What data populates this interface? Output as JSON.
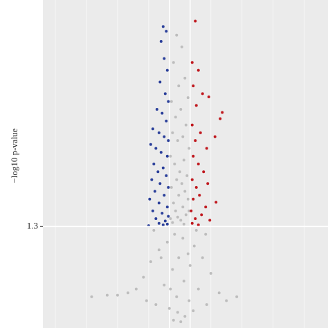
{
  "chart_data": {
    "type": "scatter",
    "y_label": "−log10 p-value",
    "xlim": [
      -13.2,
      14.3
    ],
    "ylim": [
      0,
      4.2
    ],
    "yticks": [
      1.3
    ],
    "x_gridlines": [
      -12,
      -9,
      -6,
      -3,
      3,
      6,
      9,
      12
    ],
    "x_thresholds": [
      -1,
      1
    ],
    "y_threshold": 1.3,
    "grid": true,
    "background": "#ebebeb",
    "series": [
      {
        "color": "#bdbdbd",
        "x": [
          -0.3,
          0.2,
          -0.6,
          0.5,
          -0.1,
          0.8,
          -0.8,
          0.1,
          -0.4,
          0.6,
          -0.7,
          0.3,
          -0.2,
          0.9,
          -0.9,
          0.4,
          -0.5,
          0.0,
          0.7,
          -0.3,
          0.2,
          -0.8,
          0.5,
          -0.1,
          0.8,
          -0.6,
          0.3,
          -0.4,
          0.6,
          -0.2,
          0.1,
          -0.7,
          0.4,
          0.9,
          -0.9,
          -0.5,
          0.3,
          -1.2,
          1.4,
          -2.0,
          0.8,
          -0.1,
          2.2,
          -2.8,
          1.0,
          -0.7,
          3.0,
          -3.5,
          0.4,
          -1.5,
          1.8,
          -4.2,
          3.8,
          -0.3,
          -5.0,
          5.5,
          0.9,
          -2.3,
          2.6,
          -6.0,
          -7.0,
          -8.5,
          4.5,
          -0.2,
          0.5,
          -0.6,
          0.1,
          -1.0,
          1.3,
          -3.2,
          -1.8,
          2.5,
          -2.5,
          1.6,
          -0.9
        ],
        "y": [
          3.75,
          3.6,
          3.4,
          3.2,
          3.1,
          2.95,
          2.9,
          2.8,
          2.7,
          2.6,
          2.5,
          2.45,
          2.4,
          2.3,
          2.2,
          2.15,
          2.1,
          2.0,
          1.95,
          1.9,
          1.85,
          1.8,
          1.75,
          1.7,
          1.65,
          1.6,
          1.55,
          1.5,
          1.45,
          1.42,
          1.38,
          1.35,
          1.33,
          1.5,
          1.4,
          1.2,
          1.15,
          1.1,
          1.05,
          1.0,
          0.95,
          0.9,
          0.9,
          0.85,
          0.8,
          0.75,
          0.7,
          0.65,
          0.6,
          0.55,
          0.5,
          0.5,
          0.45,
          0.4,
          0.45,
          0.4,
          0.35,
          0.3,
          0.3,
          0.42,
          0.42,
          0.4,
          0.35,
          0.2,
          0.15,
          0.1,
          0.08,
          0.25,
          0.22,
          0.35,
          0.9,
          1.2,
          1.25,
          1.25,
          0.5
        ]
      },
      {
        "color": "#2a3f9a",
        "x": [
          -1.6,
          -1.3,
          -1.8,
          -1.5,
          -1.2,
          -1.9,
          -1.4,
          -1.1,
          -2.2,
          -1.7,
          -1.3,
          -2.6,
          -2.0,
          -1.5,
          -1.1,
          -2.8,
          -2.3,
          -1.8,
          -1.2,
          -2.5,
          -1.6,
          -2.1,
          -1.3,
          -2.7,
          -1.9,
          -1.1,
          -2.4,
          -1.5,
          -2.9,
          -2.0,
          -1.2,
          -2.6,
          -1.7,
          -1.1,
          -2.3,
          -1.4,
          -2.0,
          -1.6,
          -3.0,
          -1.2
        ],
        "y": [
          3.86,
          3.8,
          3.67,
          3.45,
          3.3,
          3.15,
          3.0,
          2.9,
          2.8,
          2.75,
          2.65,
          2.55,
          2.5,
          2.45,
          2.4,
          2.35,
          2.3,
          2.25,
          2.2,
          2.1,
          2.05,
          2.0,
          1.95,
          1.9,
          1.85,
          1.8,
          1.75,
          1.7,
          1.65,
          1.6,
          1.55,
          1.5,
          1.47,
          1.43,
          1.4,
          1.37,
          1.34,
          1.32,
          1.31,
          1.33
        ]
      },
      {
        "color": "#c0181e",
        "x": [
          1.5,
          1.2,
          1.8,
          1.3,
          2.2,
          2.8,
          1.6,
          4.1,
          3.9,
          1.2,
          2.0,
          1.5,
          2.6,
          1.3,
          3.4,
          1.8,
          2.3,
          1.2,
          2.7,
          1.6,
          3.5,
          1.9,
          1.3,
          2.5,
          1.1,
          2.1,
          1.5,
          2.9,
          1.2,
          1.8
        ],
        "y": [
          3.93,
          3.4,
          3.3,
          3.1,
          3.0,
          2.96,
          2.85,
          2.76,
          2.68,
          2.6,
          2.5,
          2.4,
          2.3,
          2.2,
          2.45,
          2.1,
          2.0,
          1.9,
          1.85,
          1.8,
          1.61,
          1.7,
          1.65,
          1.55,
          1.5,
          1.45,
          1.4,
          1.38,
          1.34,
          1.32
        ]
      }
    ]
  }
}
